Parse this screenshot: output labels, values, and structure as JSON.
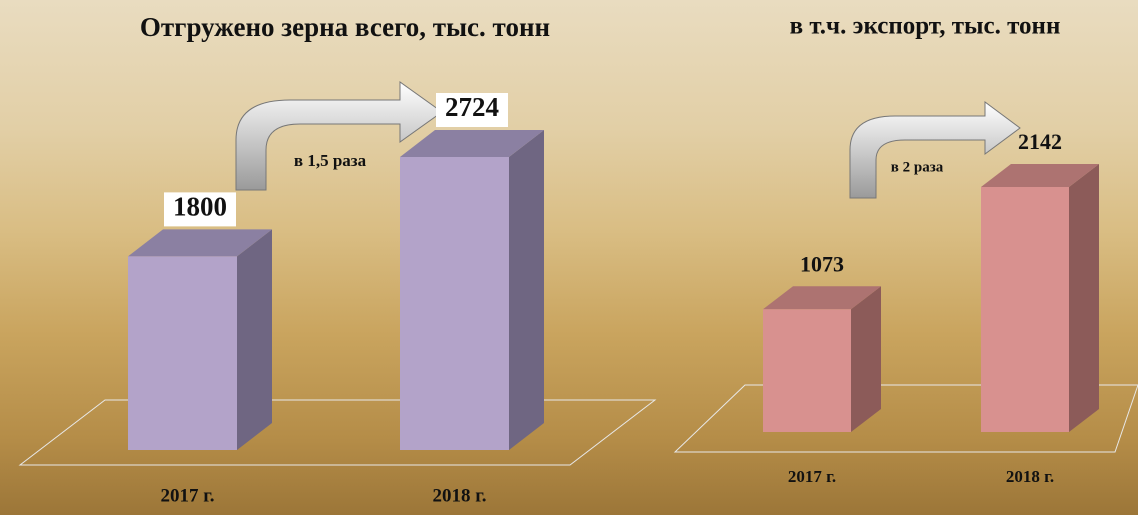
{
  "chart_data": [
    {
      "type": "bar3d",
      "title": "Отгружено зерна всего, тыс. тонн",
      "categories": [
        "2017 г.",
        "2018 г."
      ],
      "values": [
        1800,
        2724
      ],
      "annotation": "в 1,5 раза",
      "colors": {
        "front": "#b3a3c9",
        "side": "#6f6682",
        "top": "#8b80a2"
      }
    },
    {
      "type": "bar3d",
      "title": "в т.ч. экспорт, тыс. тонн",
      "categories": [
        "2017 г.",
        "2018 г."
      ],
      "values": [
        1073,
        2142
      ],
      "annotation": "в 2 раза",
      "colors": {
        "front": "#d8918f",
        "side": "#8c5b59",
        "top": "#ad7371"
      }
    }
  ]
}
